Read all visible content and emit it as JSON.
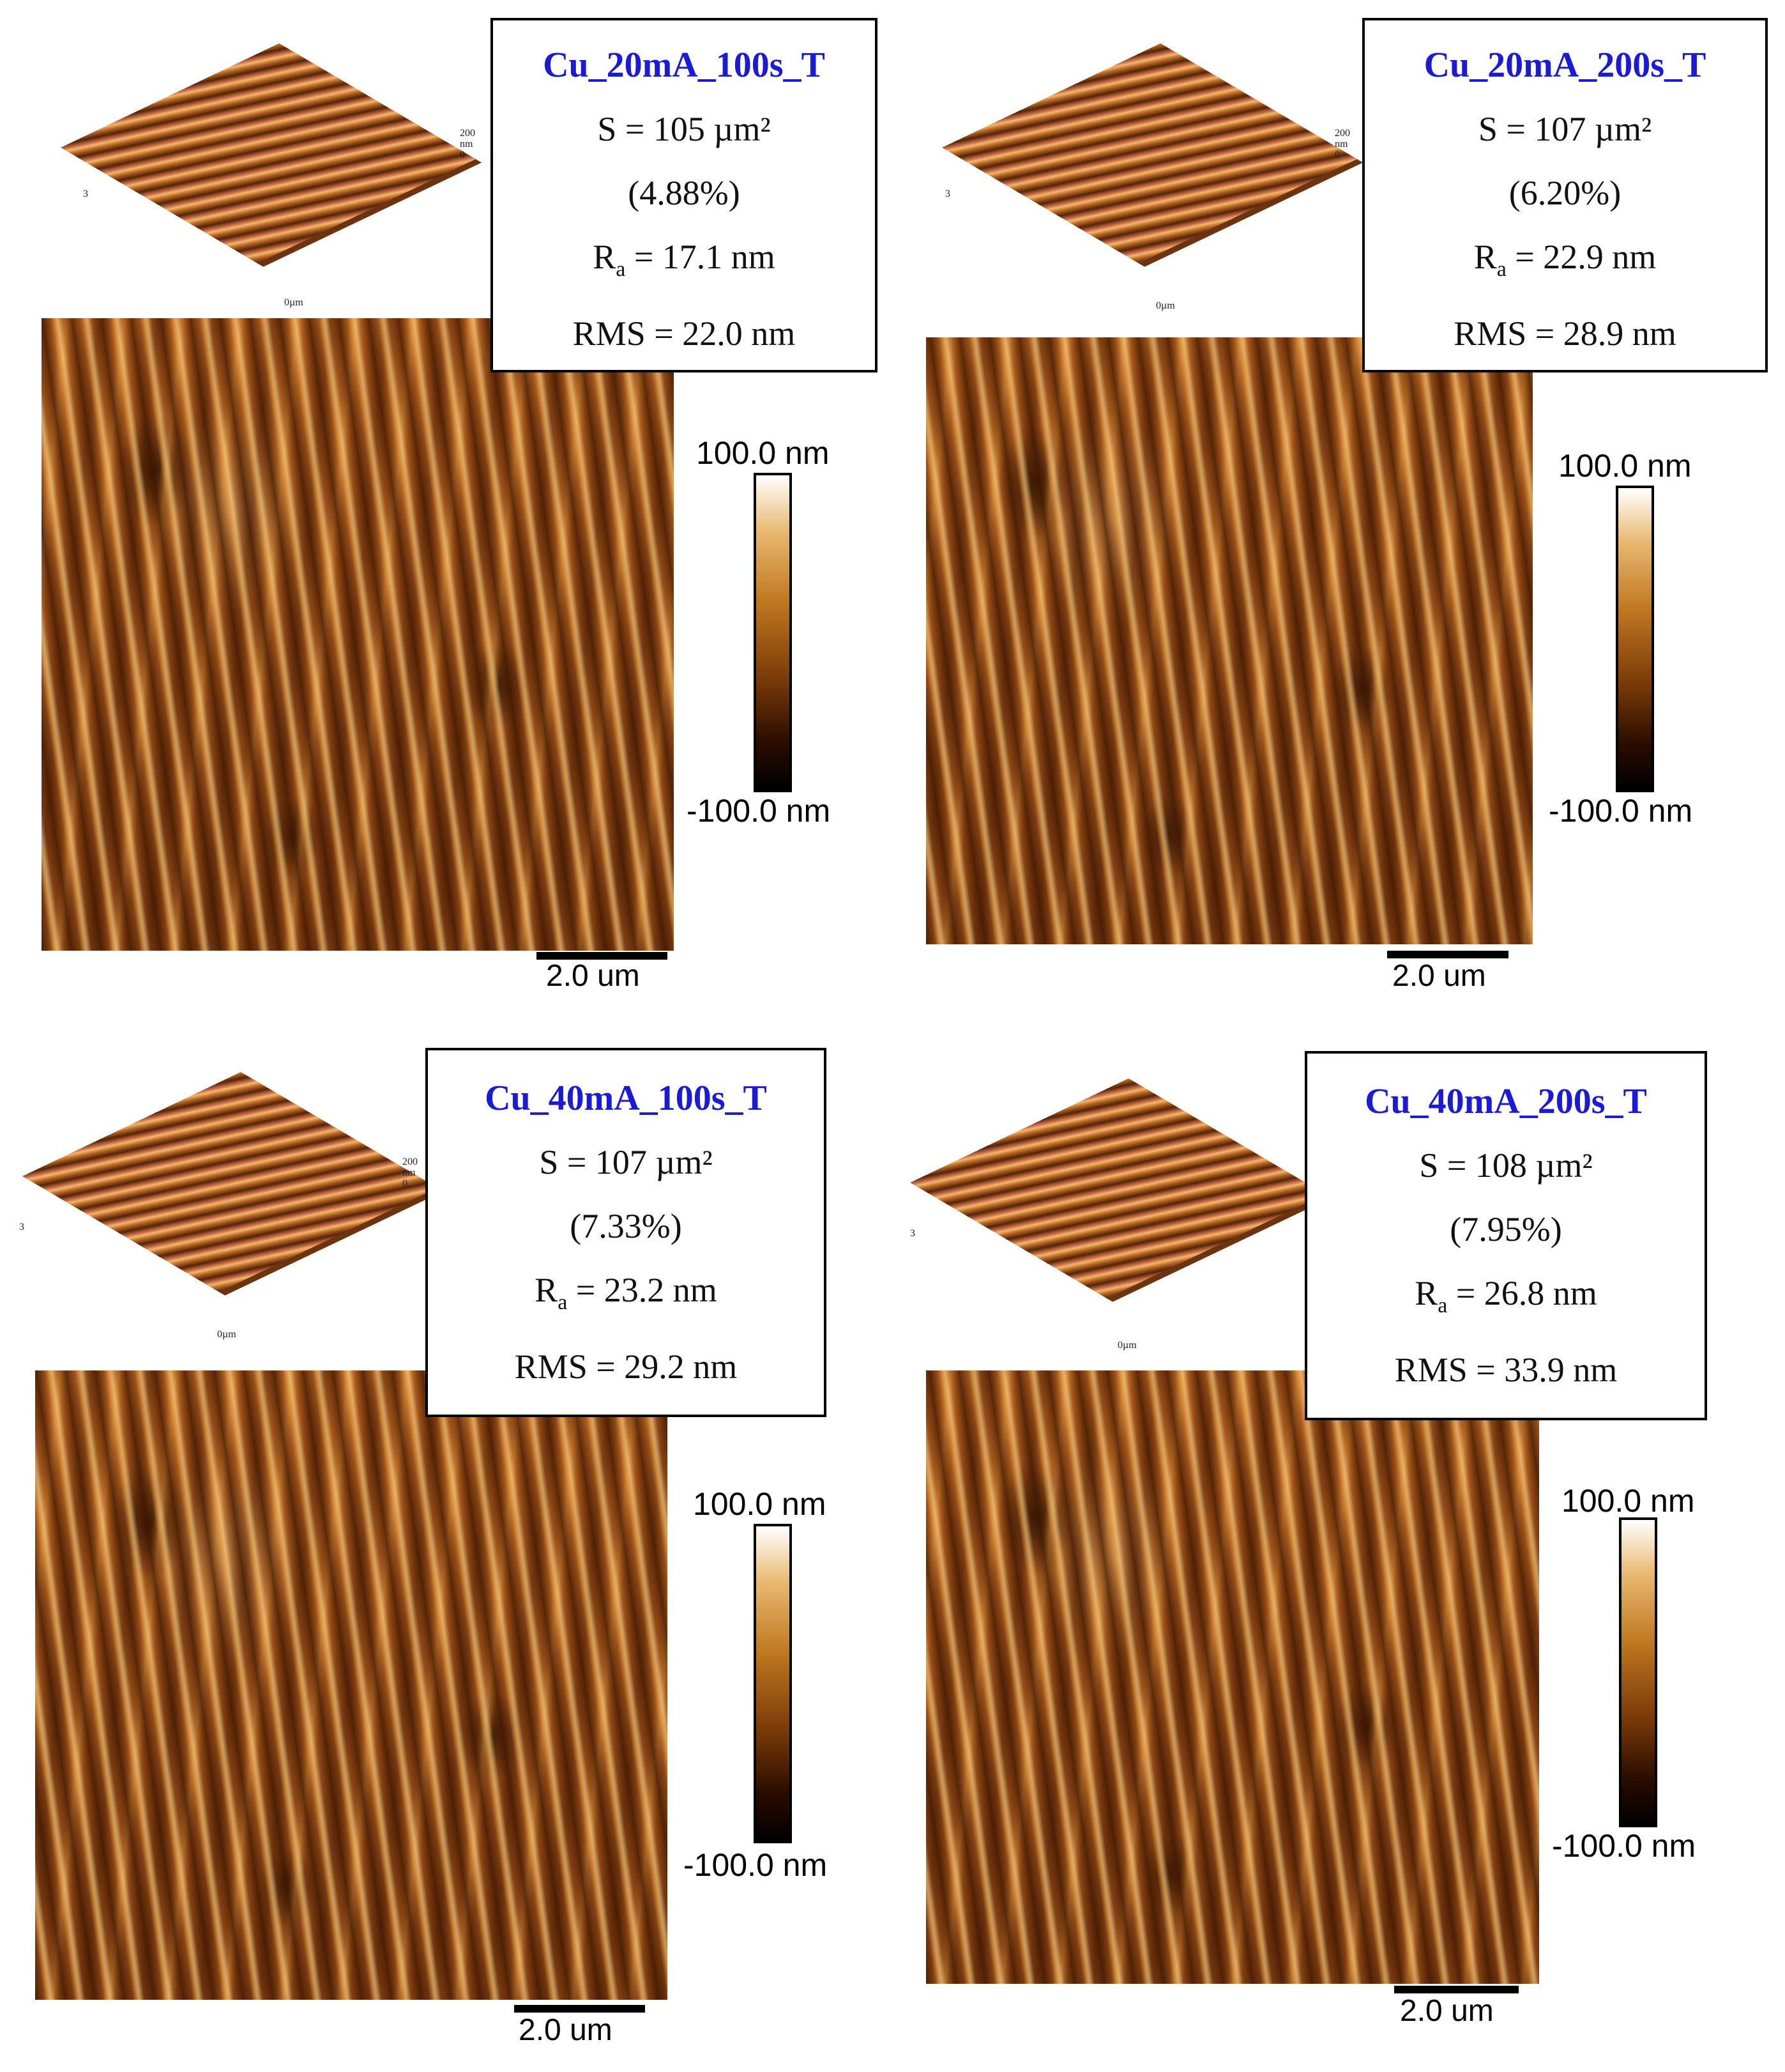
{
  "panels": [
    {
      "sample": "Cu_20mA_100s_T",
      "s": "S = 105 µm²",
      "pct": "(4.88%)",
      "ra_sym": "R",
      "ra_sub": "a",
      "ra_val": " = 17.1 nm",
      "rms": "RMS = 22.0 nm",
      "cbar_max": "100.0 nm",
      "cbar_min": "-100.0 nm",
      "scale": "2.0 um",
      "axis_z_top": "200",
      "axis_z_unit": "nm",
      "axis_z_zero": "0",
      "axis_side": "3",
      "axis_origin": "0µm"
    },
    {
      "sample": "Cu_20mA_200s_T",
      "s": "S = 107 µm²",
      "pct": "(6.20%)",
      "ra_sym": "R",
      "ra_sub": "a",
      "ra_val": " = 22.9 nm",
      "rms": "RMS = 28.9 nm",
      "cbar_max": "100.0 nm",
      "cbar_min": "-100.0 nm",
      "scale": "2.0 um",
      "axis_z_top": "200",
      "axis_z_unit": "nm",
      "axis_z_zero": "0",
      "axis_side": "3",
      "axis_origin": "0µm"
    },
    {
      "sample": "Cu_40mA_100s_T",
      "s": "S = 107 µm²",
      "pct": "(7.33%)",
      "ra_sym": "R",
      "ra_sub": "a",
      "ra_val": " = 23.2 nm",
      "rms": "RMS = 29.2 nm",
      "cbar_max": "100.0 nm",
      "cbar_min": "-100.0 nm",
      "scale": "2.0 um",
      "axis_z_top": "200",
      "axis_z_unit": "nm",
      "axis_z_zero": "0",
      "axis_side": "3",
      "axis_origin": "0µm"
    },
    {
      "sample": "Cu_40mA_200s_T",
      "s": "S = 108 µm²",
      "pct": "(7.95%)",
      "ra_sym": "R",
      "ra_sub": "a",
      "ra_val": " = 26.8 nm",
      "rms": "RMS = 33.9 nm",
      "cbar_max": "100.0 nm",
      "cbar_min": "-100.0 nm",
      "scale": "2.0 um",
      "axis_z_top": "200",
      "axis_z_unit": "nm",
      "axis_z_zero": "0",
      "axis_side": "3",
      "axis_origin": "0µm"
    }
  ],
  "colors": {
    "title_blue": "#1a1ad8",
    "afm_dark": "#2a0c00",
    "afm_mid": "#a0541a",
    "afm_light": "#ffe6b0"
  }
}
